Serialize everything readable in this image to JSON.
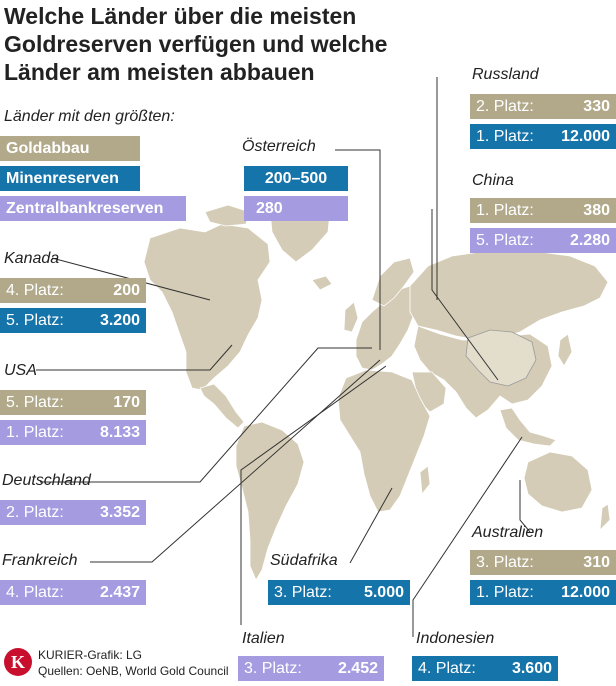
{
  "title": "Welche Länder über die meisten Goldreserven verfügen und welche Länder am meisten abbauen",
  "legend": {
    "heading": "Länder mit den größten:",
    "items": [
      {
        "label": "Goldabbau",
        "color": "#b1a98a"
      },
      {
        "label": "Minenreserven",
        "color": "#1574a9"
      },
      {
        "label": "Zentralbankreserven",
        "color": "#a49be0"
      }
    ]
  },
  "countries": {
    "oesterreich": {
      "name": "Österreich",
      "minenreserven": "200–500",
      "zentralbankreserven": "280"
    },
    "russland": {
      "name": "Russland",
      "goldabbau_rank": "2. Platz:",
      "goldabbau": "330",
      "minenreserven_rank": "1. Platz:",
      "minenreserven": "12.000"
    },
    "china": {
      "name": "China",
      "goldabbau_rank": "1. Platz:",
      "goldabbau": "380",
      "zentralbankreserven_rank": "5. Platz:",
      "zentralbankreserven": "2.280"
    },
    "kanada": {
      "name": "Kanada",
      "goldabbau_rank": "4. Platz:",
      "goldabbau": "200",
      "minenreserven_rank": "5. Platz:",
      "minenreserven": "3.200"
    },
    "usa": {
      "name": "USA",
      "goldabbau_rank": "5. Platz:",
      "goldabbau": "170",
      "zentralbankreserven_rank": "1. Platz:",
      "zentralbankreserven": "8.133"
    },
    "deutschland": {
      "name": "Deutschland",
      "zentralbankreserven_rank": "2. Platz:",
      "zentralbankreserven": "3.352"
    },
    "frankreich": {
      "name": "Frankreich",
      "zentralbankreserven_rank": "4. Platz:",
      "zentralbankreserven": "2.437"
    },
    "suedafrika": {
      "name": "Südafrika",
      "minenreserven_rank": "3. Platz:",
      "minenreserven": "5.000"
    },
    "italien": {
      "name": "Italien",
      "zentralbankreserven_rank": "3. Platz:",
      "zentralbankreserven": "2.452"
    },
    "indonesien": {
      "name": "Indonesien",
      "minenreserven_rank": "4. Platz:",
      "minenreserven": "3.600"
    },
    "australien": {
      "name": "Australien",
      "goldabbau_rank": "3. Platz:",
      "goldabbau": "310",
      "minenreserven_rank": "1. Platz:",
      "minenreserven": "12.000"
    }
  },
  "footer": {
    "logo": "K",
    "credit": "KURIER-Grafik: LG",
    "sources": "Quellen: OeNB, World Gold Council"
  }
}
